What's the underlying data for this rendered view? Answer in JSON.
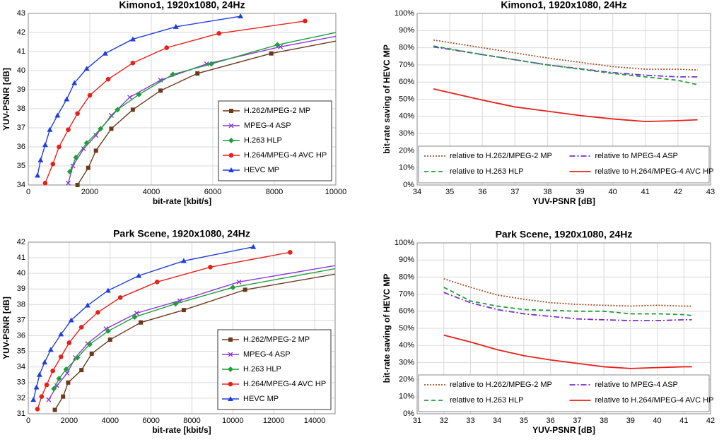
{
  "chart_data": [
    {
      "type": "line",
      "title": "Kimono1, 1920x1080, 24Hz",
      "x_label": "bit-rate [kbit/s]",
      "y_label": "YUV-PSNR [dB]",
      "xlim": [
        0,
        10000
      ],
      "xticks": [
        0,
        2000,
        4000,
        6000,
        8000,
        10000
      ],
      "ylim": [
        34,
        43
      ],
      "yticks": [
        34,
        35,
        36,
        37,
        38,
        39,
        40,
        41,
        42,
        43
      ],
      "grid": true,
      "legend": "lower right",
      "series": [
        {
          "name": "H.262/MPEG-2 MP",
          "color": "#6b3a1c",
          "marker": "square",
          "linestyle": "solid",
          "x": [
            1600,
            1950,
            2200,
            2700,
            3400,
            4300,
            5500,
            7900,
            10000
          ],
          "values": [
            34.0,
            34.9,
            35.8,
            36.95,
            37.95,
            38.95,
            39.85,
            40.9,
            41.55
          ]
        },
        {
          "name": "MPEG-4 ASP",
          "color": "#8a3ad6",
          "marker": "x",
          "linestyle": "solid",
          "x": [
            1300,
            1450,
            1800,
            2200,
            2700,
            3300,
            4300,
            5800,
            8200,
            10000
          ],
          "values": [
            34.1,
            35.0,
            35.9,
            36.6,
            37.65,
            38.6,
            39.5,
            40.35,
            41.25,
            41.8
          ]
        },
        {
          "name": "H.263 HLP",
          "color": "#1f9e3a",
          "marker": "diamond",
          "linestyle": "solid",
          "x": [
            1350,
            1550,
            1900,
            2350,
            2900,
            3600,
            4700,
            5950,
            8100,
            10000
          ],
          "values": [
            34.7,
            35.45,
            36.2,
            36.95,
            37.95,
            38.75,
            39.8,
            40.35,
            41.35,
            42.0
          ]
        },
        {
          "name": "H.264/MPEG-4 AVC HP",
          "color": "#e8201a",
          "marker": "circle",
          "linestyle": "solid",
          "x": [
            550,
            800,
            1000,
            1300,
            1600,
            2000,
            2600,
            3400,
            4500,
            6200,
            9000
          ],
          "values": [
            34.1,
            35.1,
            36.0,
            36.9,
            37.75,
            38.7,
            39.55,
            40.4,
            41.2,
            41.95,
            42.6
          ]
        },
        {
          "name": "HEVC MP",
          "color": "#1f3fdc",
          "marker": "triangle",
          "linestyle": "solid",
          "x": [
            300,
            400,
            550,
            700,
            950,
            1250,
            1500,
            1900,
            2500,
            3400,
            4800,
            6900
          ],
          "values": [
            34.5,
            35.3,
            36.1,
            36.9,
            37.65,
            38.5,
            39.35,
            40.1,
            40.9,
            41.65,
            42.3,
            42.85
          ]
        }
      ]
    },
    {
      "type": "line",
      "title": "Kimono1, 1920x1080, 24Hz",
      "x_label": "YUV-PSNR [dB]",
      "y_label": "bit-rate saving of HEVC MP",
      "xlim": [
        34,
        43
      ],
      "xticks": [
        34,
        35,
        36,
        37,
        38,
        39,
        40,
        41,
        42,
        43
      ],
      "ylim": [
        0,
        100
      ],
      "yticks": [
        {
          "value": 0,
          "label": "0%"
        },
        {
          "value": 10,
          "label": "10%"
        },
        {
          "value": 20,
          "label": "20%"
        },
        {
          "value": 30,
          "label": "30%"
        },
        {
          "value": 40,
          "label": "40%"
        },
        {
          "value": 50,
          "label": "50%"
        },
        {
          "value": 60,
          "label": "60%"
        },
        {
          "value": 70,
          "label": "70%"
        },
        {
          "value": 80,
          "label": "80%"
        },
        {
          "value": 90,
          "label": "90%"
        },
        {
          "value": 100,
          "label": "100%"
        }
      ],
      "grid": true,
      "legend": "lower center",
      "series": [
        {
          "name": "relative to H.262/MPEG-2 MP",
          "color": "#a0522d",
          "linestyle": "dotted",
          "x": [
            34.5,
            36,
            38,
            40,
            41,
            42,
            42.6
          ],
          "values": [
            84.5,
            80,
            74,
            69,
            67.5,
            67.5,
            67
          ]
        },
        {
          "name": "relative to MPEG-4 ASP",
          "color": "#7b2fd0",
          "linestyle": "dashdot",
          "x": [
            34.5,
            36,
            38,
            40,
            41,
            42,
            42.6
          ],
          "values": [
            80.5,
            76,
            70,
            65.5,
            64,
            63,
            63
          ]
        },
        {
          "name": "relative to H.263 HLP",
          "color": "#1f9e3a",
          "linestyle": "dashed",
          "x": [
            34.5,
            36,
            38,
            40,
            41,
            42,
            42.6
          ],
          "values": [
            81,
            76,
            70,
            65,
            63,
            61,
            58.5
          ]
        },
        {
          "name": "relative to H.264/MPEG-4 AVC HP",
          "color": "#e8201a",
          "linestyle": "solid",
          "x": [
            34.5,
            36,
            37,
            38,
            39,
            40,
            41,
            42,
            42.6
          ],
          "values": [
            56,
            49.5,
            45.5,
            43,
            40.5,
            38.5,
            37,
            37.5,
            38
          ]
        }
      ]
    },
    {
      "type": "line",
      "title": "Park Scene, 1920x1080, 24Hz",
      "x_label": "bit-rate [kbit/s]",
      "y_label": "YUV-PSNR [dB]",
      "xlim": [
        0,
        15000
      ],
      "xticks": [
        0,
        2000,
        4000,
        6000,
        8000,
        10000,
        12000,
        14000
      ],
      "ylim": [
        31,
        42
      ],
      "yticks": [
        31,
        32,
        33,
        34,
        35,
        36,
        37,
        38,
        39,
        40,
        41,
        42
      ],
      "grid": true,
      "legend": "lower right",
      "series": [
        {
          "name": "H.262/MPEG-2 MP",
          "color": "#6b3a1c",
          "marker": "square",
          "linestyle": "solid",
          "x": [
            1300,
            1700,
            1950,
            2600,
            3100,
            4000,
            5500,
            7600,
            10600,
            15000
          ],
          "values": [
            31.25,
            32.1,
            33.0,
            33.8,
            34.85,
            35.75,
            36.85,
            37.65,
            38.95,
            39.95
          ]
        },
        {
          "name": "MPEG-4 ASP",
          "color": "#8a3ad6",
          "marker": "x",
          "linestyle": "solid",
          "x": [
            1000,
            1400,
            1900,
            2300,
            2900,
            3800,
            5300,
            7400,
            10300,
            15000
          ],
          "values": [
            31.9,
            32.8,
            33.6,
            34.6,
            35.5,
            36.45,
            37.45,
            38.25,
            39.45,
            40.5
          ]
        },
        {
          "name": "H.263 HLP",
          "color": "#1f9e3a",
          "marker": "diamond",
          "linestyle": "solid",
          "x": [
            1250,
            1500,
            1850,
            2400,
            3000,
            3900,
            5200,
            7200,
            10000,
            15000
          ],
          "values": [
            32.6,
            33.25,
            33.85,
            34.6,
            35.45,
            36.3,
            37.2,
            38.05,
            39.1,
            40.3
          ]
        },
        {
          "name": "H.264/MPEG-4 AVC HP",
          "color": "#e8201a",
          "marker": "circle",
          "linestyle": "solid",
          "x": [
            450,
            650,
            900,
            1200,
            1600,
            2000,
            2600,
            3400,
            4500,
            6300,
            8900,
            12800
          ],
          "values": [
            31.3,
            32.1,
            32.85,
            33.75,
            34.65,
            35.55,
            36.55,
            37.5,
            38.45,
            39.45,
            40.4,
            41.35
          ]
        },
        {
          "name": "HEVC MP",
          "color": "#1f3fdc",
          "marker": "triangle",
          "linestyle": "solid",
          "x": [
            250,
            400,
            550,
            800,
            1100,
            1600,
            2100,
            2900,
            3900,
            5400,
            7600,
            11000
          ],
          "values": [
            31.9,
            32.7,
            33.5,
            34.3,
            35.1,
            36.1,
            37.0,
            37.95,
            38.9,
            39.85,
            40.8,
            41.7
          ]
        }
      ]
    },
    {
      "type": "line",
      "title": "Park Scene, 1920x1080, 24Hz",
      "x_label": "YUV-PSNR [dB]",
      "y_label": "bit-rate saving of HEVC MP",
      "xlim": [
        31,
        42
      ],
      "xticks": [
        31,
        32,
        33,
        34,
        35,
        36,
        37,
        38,
        39,
        40,
        41,
        42
      ],
      "ylim": [
        0,
        100
      ],
      "yticks": [
        {
          "value": 0,
          "label": "0%"
        },
        {
          "value": 10,
          "label": "10%"
        },
        {
          "value": 20,
          "label": "20%"
        },
        {
          "value": 30,
          "label": "30%"
        },
        {
          "value": 40,
          "label": "40%"
        },
        {
          "value": 50,
          "label": "50%"
        },
        {
          "value": 60,
          "label": "60%"
        },
        {
          "value": 70,
          "label": "70%"
        },
        {
          "value": 80,
          "label": "80%"
        },
        {
          "value": 90,
          "label": "90%"
        },
        {
          "value": 100,
          "label": "100%"
        }
      ],
      "grid": true,
      "legend": "lower center",
      "series": [
        {
          "name": "relative to H.262/MPEG-2 MP",
          "color": "#a0522d",
          "linestyle": "dotted",
          "x": [
            32,
            33,
            34,
            35,
            36,
            37,
            38,
            39,
            40,
            41,
            41.3
          ],
          "values": [
            79,
            74,
            69.5,
            67,
            65,
            64,
            63.5,
            63,
            63.5,
            63,
            63
          ]
        },
        {
          "name": "relative to MPEG-4 ASP",
          "color": "#7b2fd0",
          "linestyle": "dashdot",
          "x": [
            32,
            33,
            34,
            35,
            36,
            37,
            38,
            39,
            40,
            41,
            41.3
          ],
          "values": [
            71,
            65,
            61,
            58.5,
            57,
            55.5,
            55,
            54.5,
            54.5,
            55,
            55
          ]
        },
        {
          "name": "relative to H.263 HLP",
          "color": "#1f9e3a",
          "linestyle": "dashed",
          "x": [
            32,
            33,
            34,
            35,
            36,
            37,
            38,
            39,
            40,
            41,
            41.3
          ],
          "values": [
            74,
            66,
            63,
            61,
            60.5,
            60,
            60,
            58.5,
            58.5,
            58,
            57.5
          ]
        },
        {
          "name": "relative to H.264/MPEG-4 AVC HP",
          "color": "#e8201a",
          "linestyle": "solid",
          "x": [
            32,
            33,
            34,
            35,
            36,
            37,
            38,
            39,
            40,
            41,
            41.3
          ],
          "values": [
            46,
            42,
            37.5,
            34,
            31.5,
            29.5,
            27.5,
            26.5,
            27,
            27.5,
            27.5
          ]
        }
      ]
    }
  ]
}
